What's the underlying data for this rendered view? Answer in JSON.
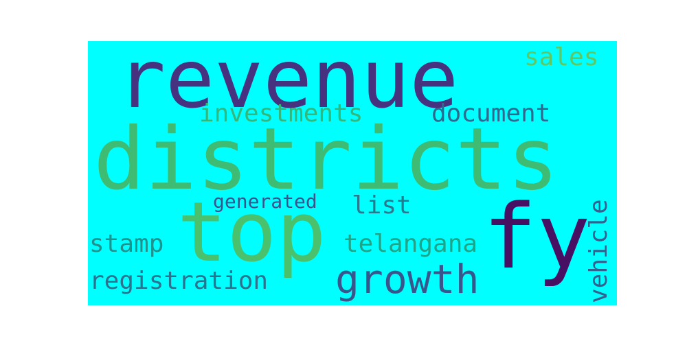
{
  "cloud": {
    "background": "#00ffff",
    "words": {
      "revenue": {
        "text": "revenue",
        "color": "#46327e"
      },
      "districts": {
        "text": "districts",
        "color": "#3fbc73"
      },
      "top": {
        "text": "top",
        "color": "#4ac16d"
      },
      "fy": {
        "text": "fy",
        "color": "#471063"
      },
      "sales": {
        "text": "sales",
        "color": "#5ec962"
      },
      "investments": {
        "text": "investments",
        "color": "#35b779"
      },
      "document": {
        "text": "document",
        "color": "#31688e"
      },
      "generated": {
        "text": "generated",
        "color": "#3b528b"
      },
      "list": {
        "text": "list",
        "color": "#2a788e"
      },
      "stamp": {
        "text": "stamp",
        "color": "#21918c"
      },
      "telangana": {
        "text": "telangana",
        "color": "#20a386"
      },
      "growth": {
        "text": "growth",
        "color": "#39568c"
      },
      "registration": {
        "text": "registration",
        "color": "#2c728e"
      },
      "vehicle": {
        "text": "vehicle",
        "color": "#355f8d"
      }
    }
  }
}
